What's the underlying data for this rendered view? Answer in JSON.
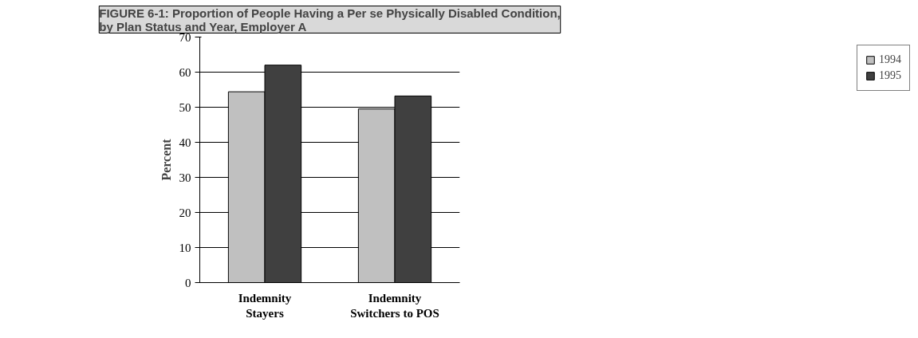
{
  "chart_data": {
    "type": "bar",
    "title": "FIGURE 6-1: Proportion of People Having a Per se Physically Disabled Condition,\nby Plan Status and Year, Employer A",
    "ylabel": "Percent",
    "categories": [
      "Indemnity\nStayers",
      "Indemnity\nSwitchers to POS"
    ],
    "series": [
      {
        "name": "1994",
        "color": "#c0c0c0",
        "values": [
          54.4,
          49.5
        ]
      },
      {
        "name": "1995",
        "color": "#404040",
        "values": [
          62,
          53.2
        ]
      }
    ],
    "ylim": [
      0,
      70
    ],
    "yticks": [
      0,
      10,
      20,
      30,
      40,
      50,
      60,
      70
    ],
    "grid": "y",
    "legend": "right"
  }
}
